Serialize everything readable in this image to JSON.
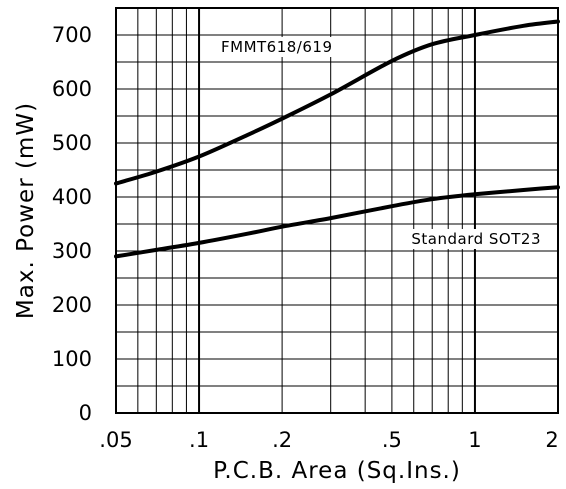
{
  "chart_data": {
    "type": "line",
    "title": "",
    "xlabel": "P.C.B. Area (Sq.Ins.)",
    "ylabel": "Max. Power (mW)",
    "x_scale": "log",
    "xlim": [
      0.05,
      2
    ],
    "ylim": [
      0,
      750
    ],
    "x_tick_labels": [
      {
        "value": 0.05,
        "label": ".05"
      },
      {
        "value": 0.1,
        "label": ".1"
      },
      {
        "value": 0.2,
        "label": ".2"
      },
      {
        "value": 0.5,
        "label": ".5"
      },
      {
        "value": 1,
        "label": "1"
      },
      {
        "value": 2,
        "label": "2"
      }
    ],
    "y_ticks": [
      0,
      100,
      200,
      300,
      400,
      500,
      600,
      700
    ],
    "grid": true,
    "series": [
      {
        "name": "FMMT618/619",
        "x": [
          0.05,
          0.07,
          0.1,
          0.15,
          0.2,
          0.3,
          0.5,
          0.7,
          1,
          1.5,
          2
        ],
        "y": [
          425,
          447,
          475,
          515,
          545,
          590,
          652,
          683,
          700,
          717,
          725
        ]
      },
      {
        "name": "Standard SOT23",
        "x": [
          0.05,
          0.07,
          0.1,
          0.15,
          0.2,
          0.3,
          0.5,
          0.7,
          1,
          1.5,
          2
        ],
        "y": [
          290,
          302,
          315,
          332,
          345,
          361,
          383,
          396,
          405,
          413,
          418
        ]
      }
    ]
  }
}
